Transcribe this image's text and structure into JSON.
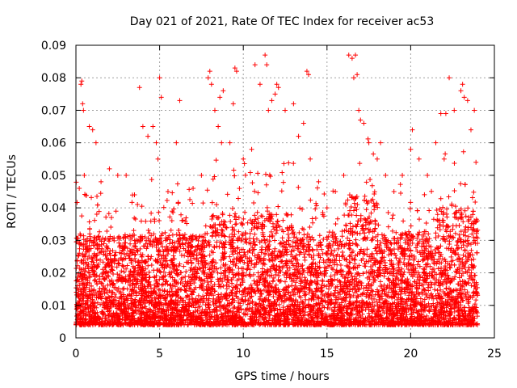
{
  "chart_data": {
    "type": "scatter",
    "title": "Day 021 of 2021, Rate Of TEC Index for receiver ac53",
    "xlabel": "GPS time / hours",
    "ylabel": "ROTI / TECUs",
    "xlim": [
      0,
      25
    ],
    "ylim": [
      0,
      0.09
    ],
    "x_ticks": [
      "0",
      "5",
      "10",
      "15",
      "20",
      "25"
    ],
    "y_ticks": [
      "0",
      "0.01",
      "0.02",
      "0.03",
      "0.04",
      "0.05",
      "0.06",
      "0.07",
      "0.08",
      "0.09"
    ],
    "grid": true,
    "marker": "plus",
    "color": "#ff0000",
    "series": [
      {
        "values_summary": "dense cloud of ROTI samples from 0 to 24 h",
        "points": [
          [
            0.2,
            0.046
          ],
          [
            0.3,
            0.078
          ],
          [
            0.35,
            0.079
          ],
          [
            0.4,
            0.072
          ],
          [
            0.45,
            0.07
          ],
          [
            0.5,
            0.05
          ],
          [
            0.8,
            0.065
          ],
          [
            1.0,
            0.064
          ],
          [
            1.2,
            0.06
          ],
          [
            1.5,
            0.048
          ],
          [
            2.0,
            0.052
          ],
          [
            2.5,
            0.05
          ],
          [
            3.0,
            0.05
          ],
          [
            3.5,
            0.044
          ],
          [
            3.8,
            0.077
          ],
          [
            4.0,
            0.065
          ],
          [
            4.3,
            0.062
          ],
          [
            4.6,
            0.065
          ],
          [
            4.8,
            0.06
          ],
          [
            4.9,
            0.055
          ],
          [
            5.0,
            0.08
          ],
          [
            5.1,
            0.074
          ],
          [
            5.5,
            0.045
          ],
          [
            6.0,
            0.06
          ],
          [
            6.2,
            0.073
          ],
          [
            7.0,
            0.046
          ],
          [
            7.5,
            0.05
          ],
          [
            7.9,
            0.08
          ],
          [
            8.0,
            0.082
          ],
          [
            8.1,
            0.078
          ],
          [
            8.3,
            0.07
          ],
          [
            8.5,
            0.065
          ],
          [
            8.6,
            0.074
          ],
          [
            8.7,
            0.06
          ],
          [
            8.8,
            0.076
          ],
          [
            9.2,
            0.06
          ],
          [
            9.4,
            0.072
          ],
          [
            9.5,
            0.083
          ],
          [
            9.6,
            0.082
          ],
          [
            10.0,
            0.055
          ],
          [
            10.5,
            0.058
          ],
          [
            10.7,
            0.084
          ],
          [
            11.0,
            0.078
          ],
          [
            11.3,
            0.087
          ],
          [
            11.4,
            0.084
          ],
          [
            11.5,
            0.07
          ],
          [
            11.7,
            0.073
          ],
          [
            11.9,
            0.075
          ],
          [
            12.0,
            0.078
          ],
          [
            12.1,
            0.077
          ],
          [
            12.5,
            0.07
          ],
          [
            13.0,
            0.072
          ],
          [
            13.3,
            0.062
          ],
          [
            13.6,
            0.066
          ],
          [
            13.8,
            0.082
          ],
          [
            13.9,
            0.081
          ],
          [
            14.0,
            0.055
          ],
          [
            14.5,
            0.048
          ],
          [
            15.0,
            0.04
          ],
          [
            15.5,
            0.045
          ],
          [
            16.0,
            0.05
          ],
          [
            16.3,
            0.087
          ],
          [
            16.5,
            0.086
          ],
          [
            16.6,
            0.08
          ],
          [
            16.7,
            0.087
          ],
          [
            16.8,
            0.081
          ],
          [
            16.9,
            0.07
          ],
          [
            17.0,
            0.067
          ],
          [
            17.2,
            0.066
          ],
          [
            17.5,
            0.06
          ],
          [
            18.0,
            0.055
          ],
          [
            18.2,
            0.06
          ],
          [
            18.5,
            0.05
          ],
          [
            19.0,
            0.045
          ],
          [
            19.5,
            0.05
          ],
          [
            20.0,
            0.058
          ],
          [
            20.1,
            0.064
          ],
          [
            20.5,
            0.055
          ],
          [
            21.0,
            0.05
          ],
          [
            21.5,
            0.06
          ],
          [
            21.8,
            0.069
          ],
          [
            22.0,
            0.055
          ],
          [
            22.1,
            0.069
          ],
          [
            22.3,
            0.08
          ],
          [
            22.6,
            0.07
          ],
          [
            23.0,
            0.076
          ],
          [
            23.1,
            0.078
          ],
          [
            23.2,
            0.074
          ],
          [
            23.4,
            0.073
          ],
          [
            23.6,
            0.064
          ],
          [
            23.8,
            0.07
          ],
          [
            23.9,
            0.054
          ]
        ]
      }
    ]
  }
}
